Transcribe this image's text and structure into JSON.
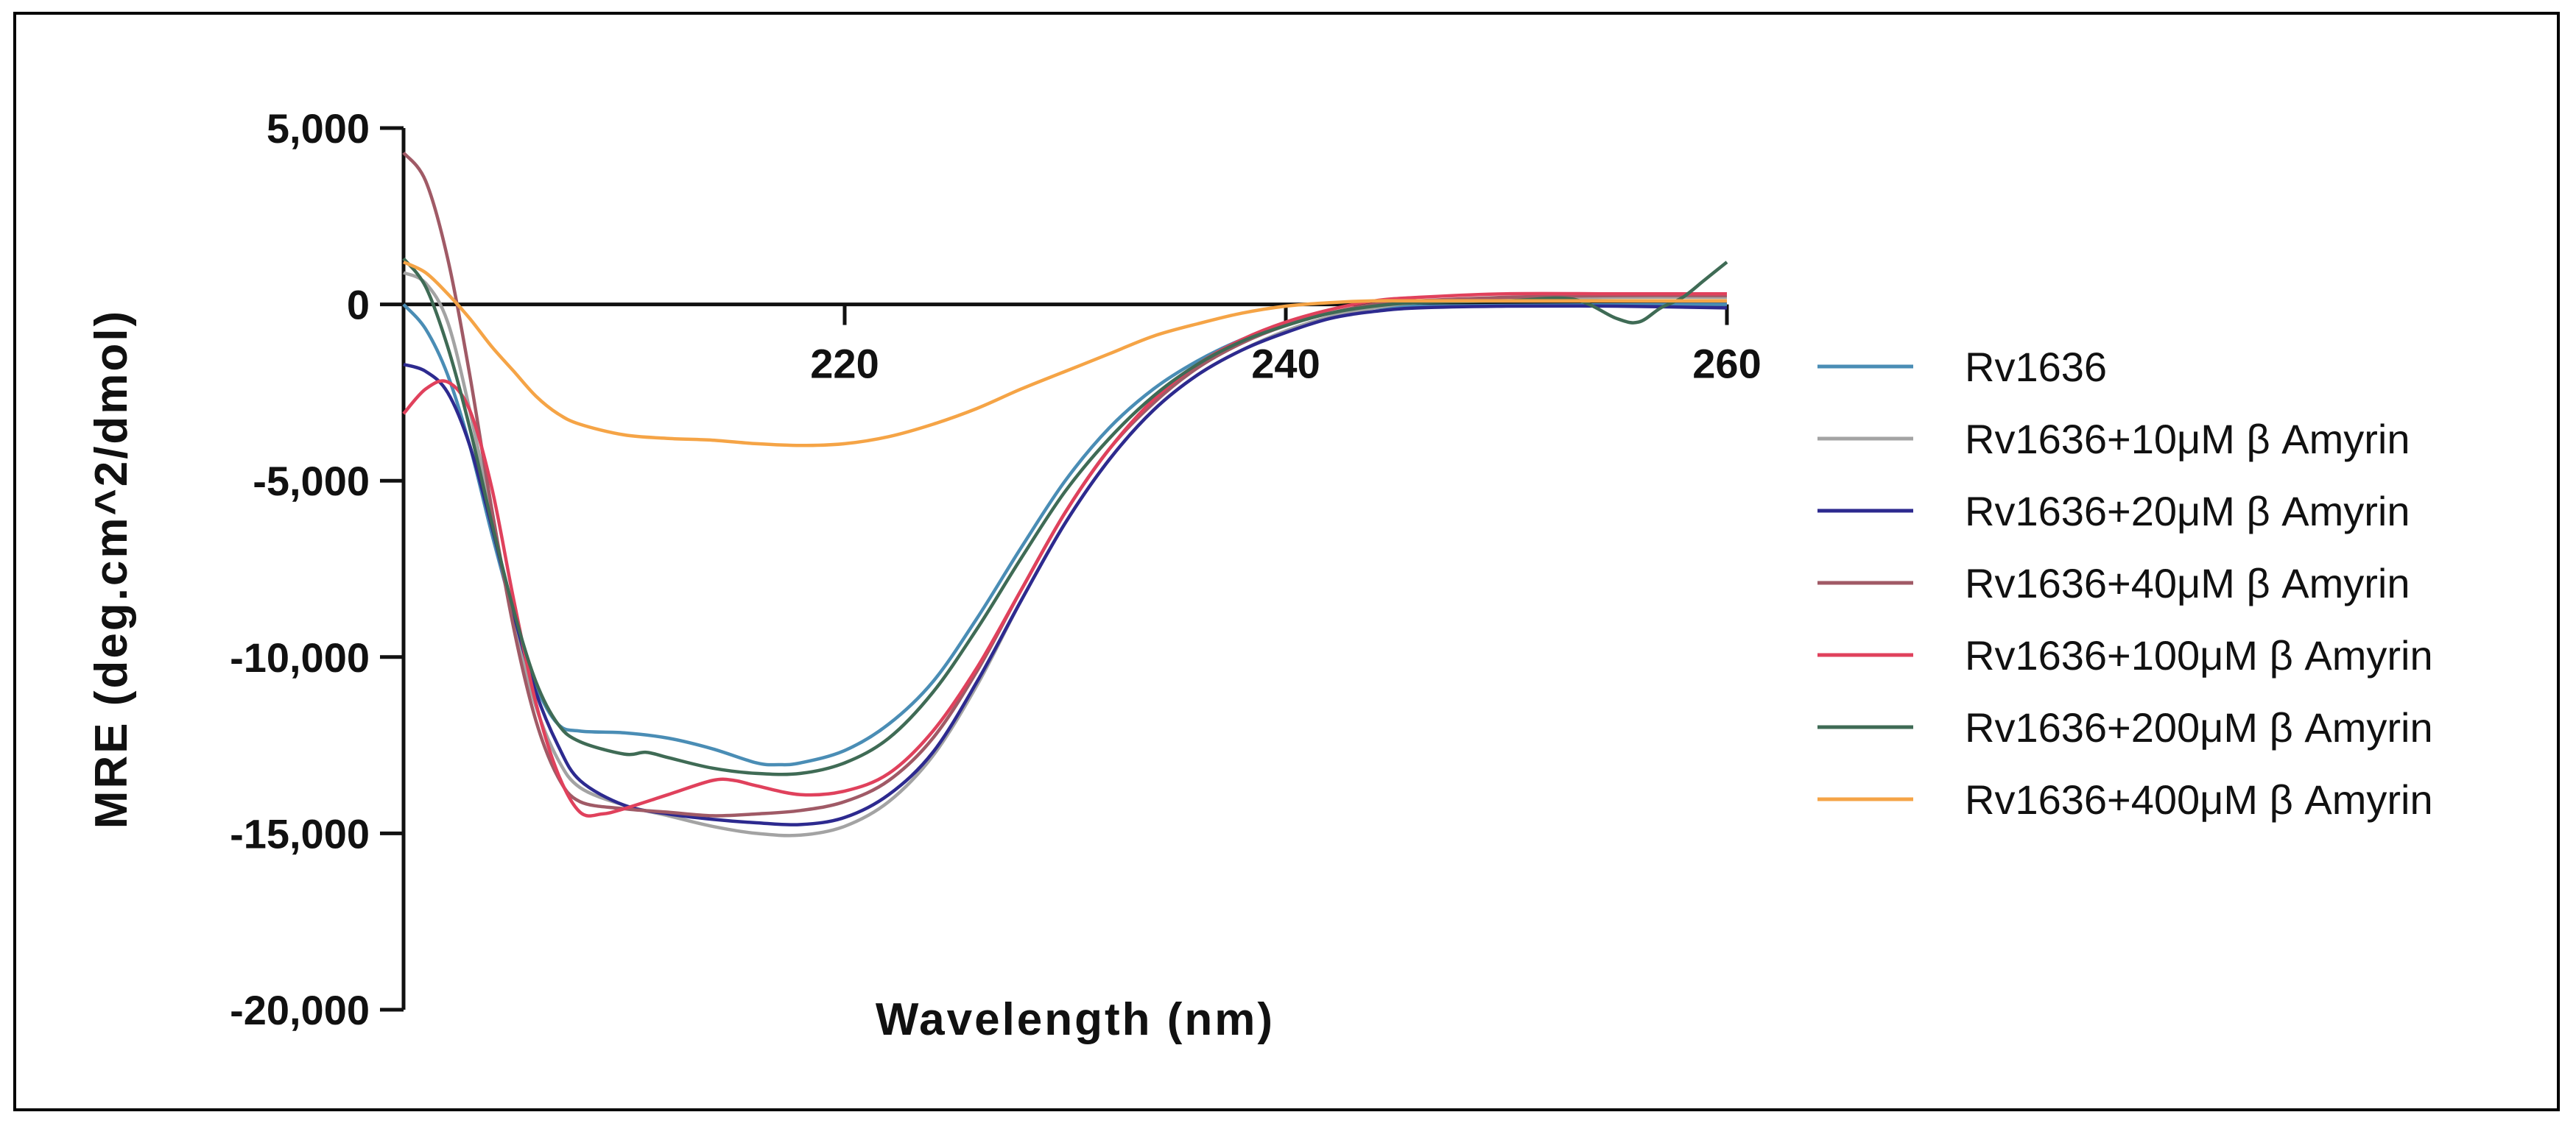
{
  "chart_data": {
    "type": "line",
    "title": "",
    "xlabel": "Wavelength (nm)",
    "ylabel": "MRE (deg.cm^2/dmol)",
    "xlim": [
      200,
      260
    ],
    "ylim": [
      -20000,
      5000
    ],
    "x_ticks": [
      {
        "value": 220,
        "label": "220"
      },
      {
        "value": 240,
        "label": "240"
      },
      {
        "value": 260,
        "label": "260"
      }
    ],
    "y_ticks": [
      {
        "value": 5000,
        "label": "5,000"
      },
      {
        "value": 0,
        "label": "0"
      },
      {
        "value": -5000,
        "label": "-5,000"
      },
      {
        "value": -10000,
        "label": "-10,000"
      },
      {
        "value": -15000,
        "label": "-15,000"
      },
      {
        "value": -20000,
        "label": "-20,000"
      }
    ],
    "legend_position": "right",
    "series": [
      {
        "name": "Rv1636",
        "color": "#4A8DB5",
        "points": [
          [
            200,
            0
          ],
          [
            201,
            -700
          ],
          [
            202,
            -2000
          ],
          [
            203,
            -4000
          ],
          [
            204,
            -6500
          ],
          [
            205,
            -8800
          ],
          [
            206,
            -10800
          ],
          [
            207,
            -11900
          ],
          [
            208,
            -12100
          ],
          [
            210,
            -12150
          ],
          [
            212,
            -12300
          ],
          [
            214,
            -12600
          ],
          [
            216,
            -13000
          ],
          [
            217,
            -13050
          ],
          [
            218,
            -13000
          ],
          [
            220,
            -12650
          ],
          [
            222,
            -11900
          ],
          [
            224,
            -10700
          ],
          [
            226,
            -8900
          ],
          [
            228,
            -6900
          ],
          [
            230,
            -5000
          ],
          [
            232,
            -3500
          ],
          [
            234,
            -2400
          ],
          [
            236,
            -1600
          ],
          [
            238,
            -1000
          ],
          [
            240,
            -550
          ],
          [
            242,
            -250
          ],
          [
            244,
            -100
          ],
          [
            246,
            -50
          ],
          [
            250,
            -30
          ],
          [
            255,
            -10
          ],
          [
            260,
            0
          ]
        ]
      },
      {
        "name": "Rv1636+10μM β Amyrin",
        "color": "#A3A3A3",
        "points": [
          [
            200,
            900
          ],
          [
            201,
            600
          ],
          [
            202,
            -500
          ],
          [
            203,
            -3000
          ],
          [
            204,
            -6000
          ],
          [
            205,
            -9000
          ],
          [
            206,
            -11400
          ],
          [
            207,
            -12900
          ],
          [
            208,
            -13700
          ],
          [
            210,
            -14200
          ],
          [
            212,
            -14500
          ],
          [
            214,
            -14800
          ],
          [
            216,
            -15000
          ],
          [
            218,
            -15050
          ],
          [
            220,
            -14800
          ],
          [
            222,
            -14100
          ],
          [
            224,
            -12800
          ],
          [
            226,
            -10800
          ],
          [
            228,
            -8400
          ],
          [
            230,
            -6200
          ],
          [
            232,
            -4400
          ],
          [
            234,
            -3000
          ],
          [
            236,
            -2000
          ],
          [
            238,
            -1300
          ],
          [
            240,
            -750
          ],
          [
            242,
            -350
          ],
          [
            244,
            -100
          ],
          [
            246,
            50
          ],
          [
            250,
            150
          ],
          [
            255,
            200
          ],
          [
            260,
            200
          ]
        ]
      },
      {
        "name": "Rv1636+20μM β Amyrin",
        "color": "#2D2A8F",
        "points": [
          [
            200,
            -1700
          ],
          [
            201,
            -1900
          ],
          [
            202,
            -2500
          ],
          [
            203,
            -4000
          ],
          [
            204,
            -6300
          ],
          [
            205,
            -8800
          ],
          [
            206,
            -11000
          ],
          [
            207,
            -12500
          ],
          [
            208,
            -13500
          ],
          [
            210,
            -14200
          ],
          [
            212,
            -14450
          ],
          [
            214,
            -14600
          ],
          [
            216,
            -14700
          ],
          [
            218,
            -14750
          ],
          [
            220,
            -14550
          ],
          [
            222,
            -13900
          ],
          [
            224,
            -12700
          ],
          [
            226,
            -10700
          ],
          [
            228,
            -8400
          ],
          [
            230,
            -6200
          ],
          [
            232,
            -4400
          ],
          [
            234,
            -3000
          ],
          [
            236,
            -2000
          ],
          [
            238,
            -1300
          ],
          [
            240,
            -800
          ],
          [
            242,
            -400
          ],
          [
            244,
            -200
          ],
          [
            246,
            -100
          ],
          [
            250,
            -50
          ],
          [
            255,
            -50
          ],
          [
            260,
            -100
          ]
        ]
      },
      {
        "name": "Rv1636+40μM β Amyrin",
        "color": "#A05A66",
        "points": [
          [
            200,
            4300
          ],
          [
            201,
            3500
          ],
          [
            202,
            1300
          ],
          [
            203,
            -2000
          ],
          [
            204,
            -5800
          ],
          [
            205,
            -9200
          ],
          [
            206,
            -11800
          ],
          [
            207,
            -13400
          ],
          [
            208,
            -14100
          ],
          [
            210,
            -14300
          ],
          [
            212,
            -14400
          ],
          [
            214,
            -14500
          ],
          [
            216,
            -14450
          ],
          [
            218,
            -14350
          ],
          [
            220,
            -14100
          ],
          [
            222,
            -13500
          ],
          [
            224,
            -12300
          ],
          [
            226,
            -10400
          ],
          [
            228,
            -8100
          ],
          [
            230,
            -5900
          ],
          [
            232,
            -4100
          ],
          [
            234,
            -2800
          ],
          [
            236,
            -1800
          ],
          [
            238,
            -1100
          ],
          [
            240,
            -600
          ],
          [
            242,
            -250
          ],
          [
            244,
            0
          ],
          [
            246,
            100
          ],
          [
            250,
            200
          ],
          [
            255,
            250
          ],
          [
            260,
            250
          ]
        ]
      },
      {
        "name": "Rv1636+100μM β Amyrin",
        "color": "#E0415C",
        "points": [
          [
            200,
            -3100
          ],
          [
            201,
            -2400
          ],
          [
            202,
            -2200
          ],
          [
            203,
            -3000
          ],
          [
            204,
            -5200
          ],
          [
            205,
            -8400
          ],
          [
            206,
            -11300
          ],
          [
            207,
            -13300
          ],
          [
            208,
            -14400
          ],
          [
            209,
            -14450
          ],
          [
            210,
            -14300
          ],
          [
            212,
            -13900
          ],
          [
            214,
            -13500
          ],
          [
            215,
            -13500
          ],
          [
            216,
            -13650
          ],
          [
            218,
            -13900
          ],
          [
            220,
            -13800
          ],
          [
            222,
            -13300
          ],
          [
            224,
            -12100
          ],
          [
            226,
            -10300
          ],
          [
            228,
            -8100
          ],
          [
            230,
            -5900
          ],
          [
            232,
            -4100
          ],
          [
            234,
            -2700
          ],
          [
            236,
            -1700
          ],
          [
            238,
            -1000
          ],
          [
            240,
            -500
          ],
          [
            242,
            -150
          ],
          [
            244,
            100
          ],
          [
            246,
            200
          ],
          [
            250,
            300
          ],
          [
            255,
            300
          ],
          [
            260,
            300
          ]
        ]
      },
      {
        "name": "Rv1636+200μM β Amyrin",
        "color": "#3F6B55",
        "points": [
          [
            200,
            1300
          ],
          [
            201,
            500
          ],
          [
            202,
            -1200
          ],
          [
            203,
            -3500
          ],
          [
            204,
            -6200
          ],
          [
            205,
            -8700
          ],
          [
            206,
            -10700
          ],
          [
            207,
            -11900
          ],
          [
            208,
            -12400
          ],
          [
            210,
            -12750
          ],
          [
            211,
            -12700
          ],
          [
            212,
            -12850
          ],
          [
            214,
            -13150
          ],
          [
            216,
            -13300
          ],
          [
            218,
            -13300
          ],
          [
            220,
            -13000
          ],
          [
            222,
            -12300
          ],
          [
            224,
            -11000
          ],
          [
            226,
            -9200
          ],
          [
            228,
            -7200
          ],
          [
            230,
            -5300
          ],
          [
            232,
            -3800
          ],
          [
            234,
            -2600
          ],
          [
            236,
            -1700
          ],
          [
            238,
            -1050
          ],
          [
            240,
            -600
          ],
          [
            242,
            -250
          ],
          [
            244,
            -50
          ],
          [
            246,
            50
          ],
          [
            250,
            100
          ],
          [
            253,
            150
          ],
          [
            255,
            -400
          ],
          [
            256,
            -500
          ],
          [
            257,
            -100
          ],
          [
            258,
            200
          ],
          [
            259,
            700
          ],
          [
            260,
            1200
          ]
        ]
      },
      {
        "name": "Rv1636+400μM β Amyrin",
        "color": "#F5A446",
        "points": [
          [
            200,
            1200
          ],
          [
            201,
            900
          ],
          [
            202,
            300
          ],
          [
            203,
            -400
          ],
          [
            204,
            -1200
          ],
          [
            205,
            -1900
          ],
          [
            206,
            -2600
          ],
          [
            207,
            -3100
          ],
          [
            208,
            -3400
          ],
          [
            210,
            -3700
          ],
          [
            212,
            -3800
          ],
          [
            214,
            -3850
          ],
          [
            216,
            -3950
          ],
          [
            218,
            -4000
          ],
          [
            220,
            -3950
          ],
          [
            222,
            -3750
          ],
          [
            224,
            -3400
          ],
          [
            226,
            -2950
          ],
          [
            228,
            -2400
          ],
          [
            230,
            -1900
          ],
          [
            232,
            -1400
          ],
          [
            234,
            -900
          ],
          [
            236,
            -550
          ],
          [
            238,
            -250
          ],
          [
            240,
            -50
          ],
          [
            242,
            50
          ],
          [
            244,
            100
          ],
          [
            246,
            100
          ],
          [
            250,
            100
          ],
          [
            255,
            100
          ],
          [
            260,
            100
          ]
        ]
      }
    ]
  }
}
